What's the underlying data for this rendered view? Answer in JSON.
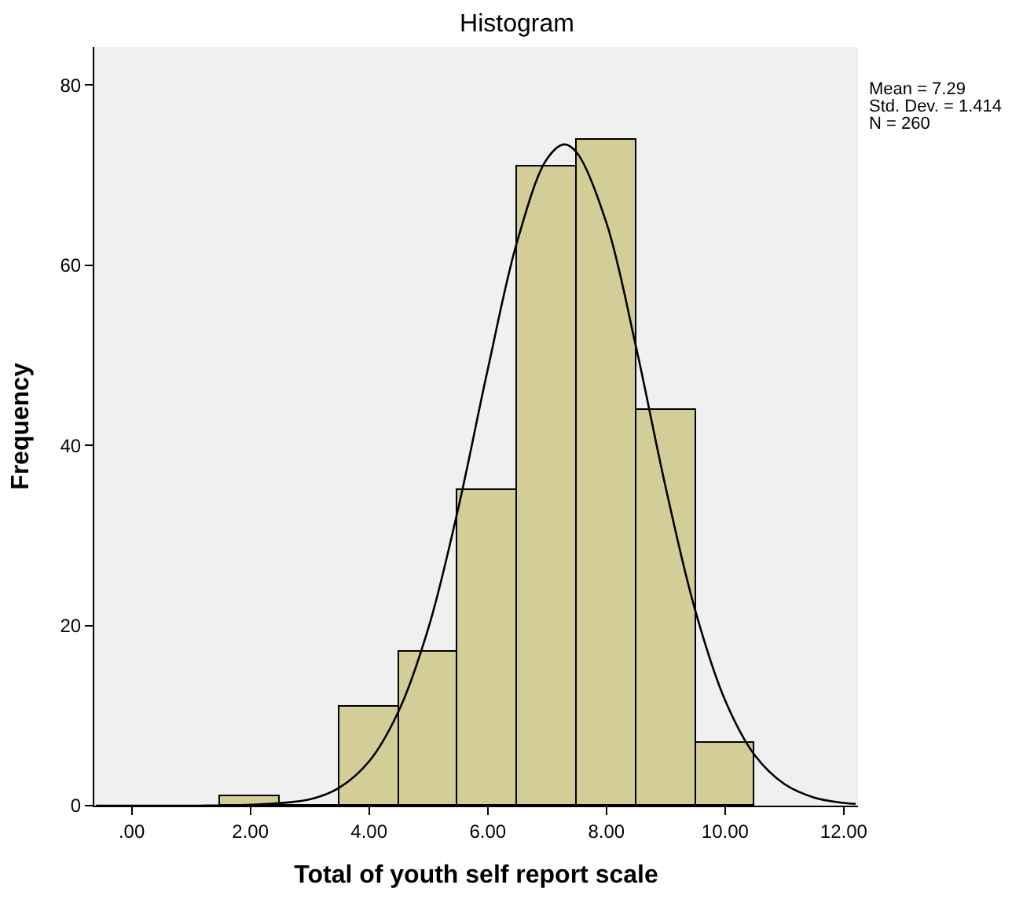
{
  "chart_data": {
    "type": "histogram",
    "title": "Histogram",
    "xlabel": "Total of youth self report scale",
    "ylabel": "Frequency",
    "bins": [
      1.5,
      2.5,
      3.5,
      4.5,
      5.5,
      6.5,
      7.5,
      8.5,
      9.5,
      10.5
    ],
    "values": [
      1,
      0,
      11,
      17,
      35,
      71,
      74,
      44,
      7
    ],
    "color": "#d3ce97",
    "series": [
      {
        "type": "line",
        "color": "#000000",
        "x": [
          -0.6,
          1,
          2,
          3,
          3.5,
          4,
          4.5,
          5,
          5.5,
          6,
          6.5,
          7,
          7.29,
          7.5,
          8,
          8.5,
          9,
          9.5,
          10,
          10.5,
          11,
          11.5,
          12,
          12.2
        ],
        "values": [
          0,
          0,
          0.1,
          0.7,
          2,
          4.9,
          10.5,
          19.7,
          32.9,
          48.4,
          62.7,
          71.8,
          73.4,
          72.5,
          64.7,
          50.9,
          35.3,
          21.6,
          11.7,
          5.6,
          2.4,
          0.9,
          0.3,
          0.2
        ]
      }
    ],
    "xlim": [
      -0.63,
      12.24
    ],
    "ylim": [
      0,
      84.2
    ],
    "xticks": [
      {
        "value": 0,
        "label": ".00"
      },
      {
        "value": 2,
        "label": "2.00"
      },
      {
        "value": 4,
        "label": "4.00"
      },
      {
        "value": 6,
        "label": "6.00"
      },
      {
        "value": 8,
        "label": "8.00"
      },
      {
        "value": 10,
        "label": "10.00"
      },
      {
        "value": 12,
        "label": "12.00"
      }
    ],
    "yticks": [
      0,
      20,
      40,
      60,
      80
    ],
    "annotations": [
      "Mean = 7.29",
      "Std. Dev. = 1.414",
      "N = 260"
    ],
    "grid": false
  }
}
